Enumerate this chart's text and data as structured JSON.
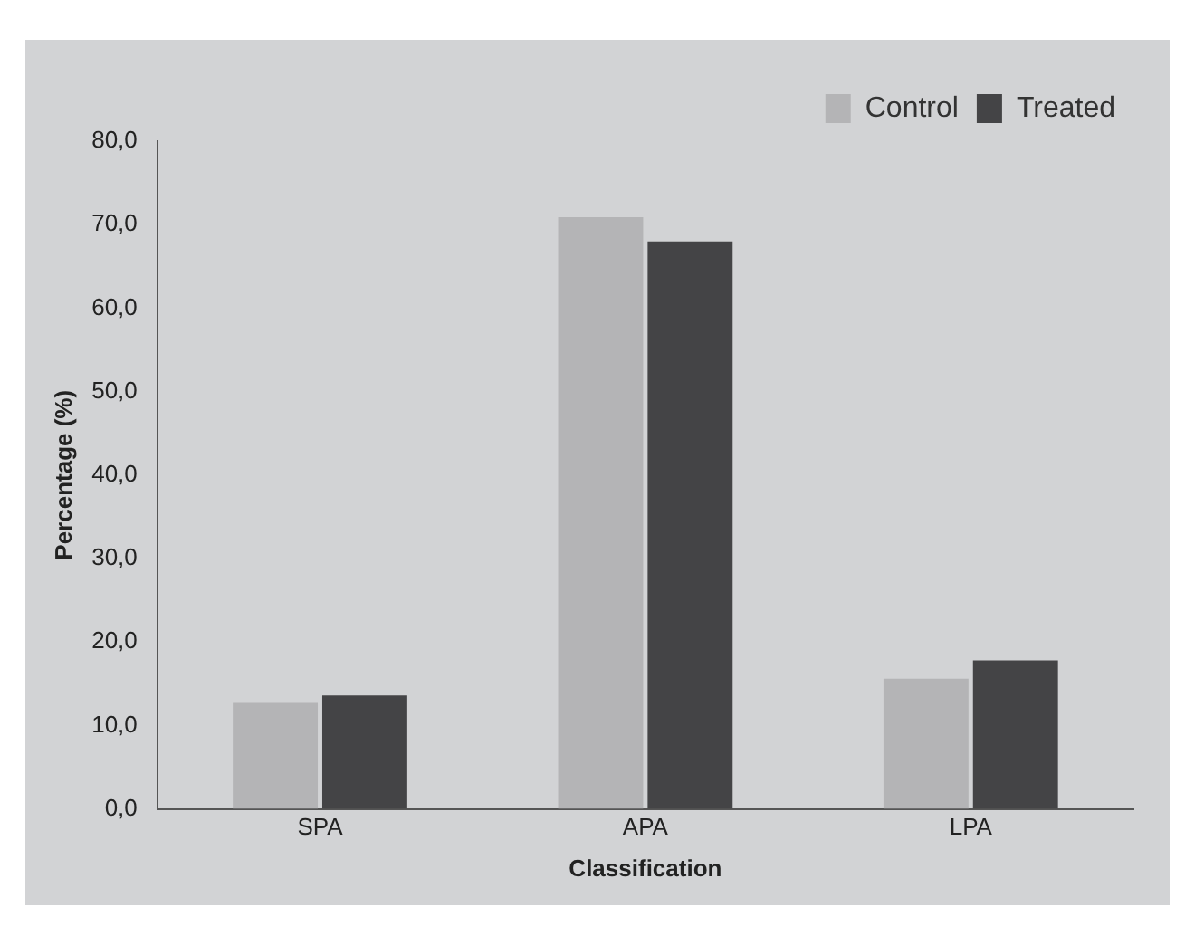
{
  "chart_data": {
    "type": "bar",
    "xlabel": "Classification",
    "ylabel": "Percentage (%)",
    "categories": [
      "SPA",
      "APA",
      "LPA"
    ],
    "series": [
      {
        "name": "Control",
        "color": "#b4b4b6",
        "values": [
          12.7,
          70.9,
          15.6
        ]
      },
      {
        "name": "Treated",
        "color": "#444446",
        "values": [
          13.6,
          68.0,
          17.8
        ]
      }
    ],
    "ylim": [
      0,
      80
    ],
    "yticks": [
      {
        "value": 0,
        "label": "0,0"
      },
      {
        "value": 10,
        "label": "10,0"
      },
      {
        "value": 20,
        "label": "20,0"
      },
      {
        "value": 30,
        "label": "30,0"
      },
      {
        "value": 40,
        "label": "40,0"
      },
      {
        "value": 50,
        "label": "50,0"
      },
      {
        "value": 60,
        "label": "60,0"
      },
      {
        "value": 70,
        "label": "70,0"
      },
      {
        "value": 80,
        "label": "80,0"
      }
    ],
    "grid": false,
    "legend": "top right"
  }
}
